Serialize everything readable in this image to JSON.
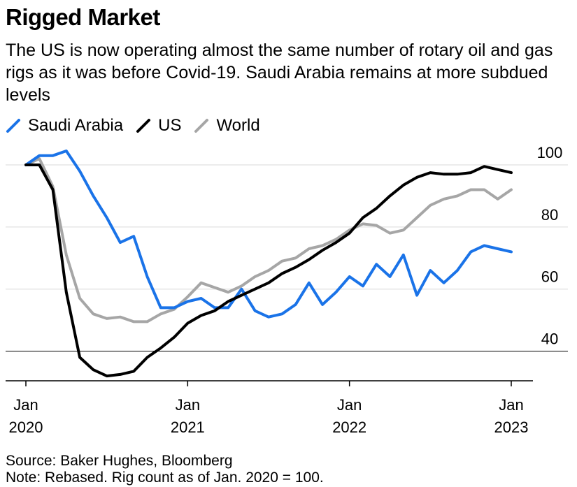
{
  "title": "Rigged Market",
  "subtitle": "The US is now operating almost the same number of rotary oil and gas rigs as it was before Covid-19. Saudi Arabia remains at more subdued levels",
  "colors": {
    "saudi": "#1a73e8",
    "us": "#000000",
    "world": "#a6a6a6",
    "grid": "#e6e6e6"
  },
  "chart_data": {
    "type": "line",
    "x_labels": [
      {
        "month": 0,
        "line1": "Jan",
        "line2": "2020"
      },
      {
        "month": 12,
        "line1": "Jan",
        "line2": "2021"
      },
      {
        "month": 24,
        "line1": "Jan",
        "line2": "2022"
      },
      {
        "month": 36,
        "line1": "Jan",
        "line2": "2023"
      }
    ],
    "xlim": [
      0,
      38
    ],
    "ylim": [
      30,
      103
    ],
    "y_ticks": [
      40,
      60,
      80,
      100
    ],
    "grid": true,
    "legend_position": "top-left",
    "series": [
      {
        "name": "Saudi Arabia",
        "color_key": "saudi",
        "values": [
          100,
          103,
          103,
          104.5,
          98,
          90,
          83,
          75,
          77,
          64,
          54,
          54,
          56,
          57,
          54,
          54,
          60,
          53,
          51,
          52,
          55,
          62,
          55,
          59,
          64,
          61,
          68,
          64,
          71,
          58,
          66,
          62,
          66,
          72,
          74,
          73,
          72
        ]
      },
      {
        "name": "US",
        "color_key": "us",
        "values": [
          100,
          100,
          92,
          59,
          38,
          34,
          32,
          32.5,
          33.5,
          38,
          41,
          44.5,
          49,
          51.5,
          53,
          56,
          58,
          60,
          62,
          65,
          67,
          69.5,
          72.5,
          75,
          78,
          83,
          86,
          90,
          93.5,
          96,
          97.5,
          97,
          97,
          97.5,
          99.5,
          98.5,
          97.5
        ]
      },
      {
        "name": "World",
        "color_key": "world",
        "values": [
          100,
          102,
          93,
          71,
          57,
          52,
          50.5,
          51,
          49.5,
          49.5,
          52,
          53.5,
          57.5,
          62,
          60.5,
          59,
          61,
          64,
          66,
          69,
          70,
          73,
          74,
          76,
          79,
          81,
          80.5,
          78,
          79,
          83,
          87,
          89,
          90,
          92,
          92,
          89,
          92
        ]
      }
    ]
  },
  "footer": {
    "source": "Source: Baker Hughes, Bloomberg",
    "note": "Note: Rebased. Rig count as of Jan. 2020 = 100."
  }
}
